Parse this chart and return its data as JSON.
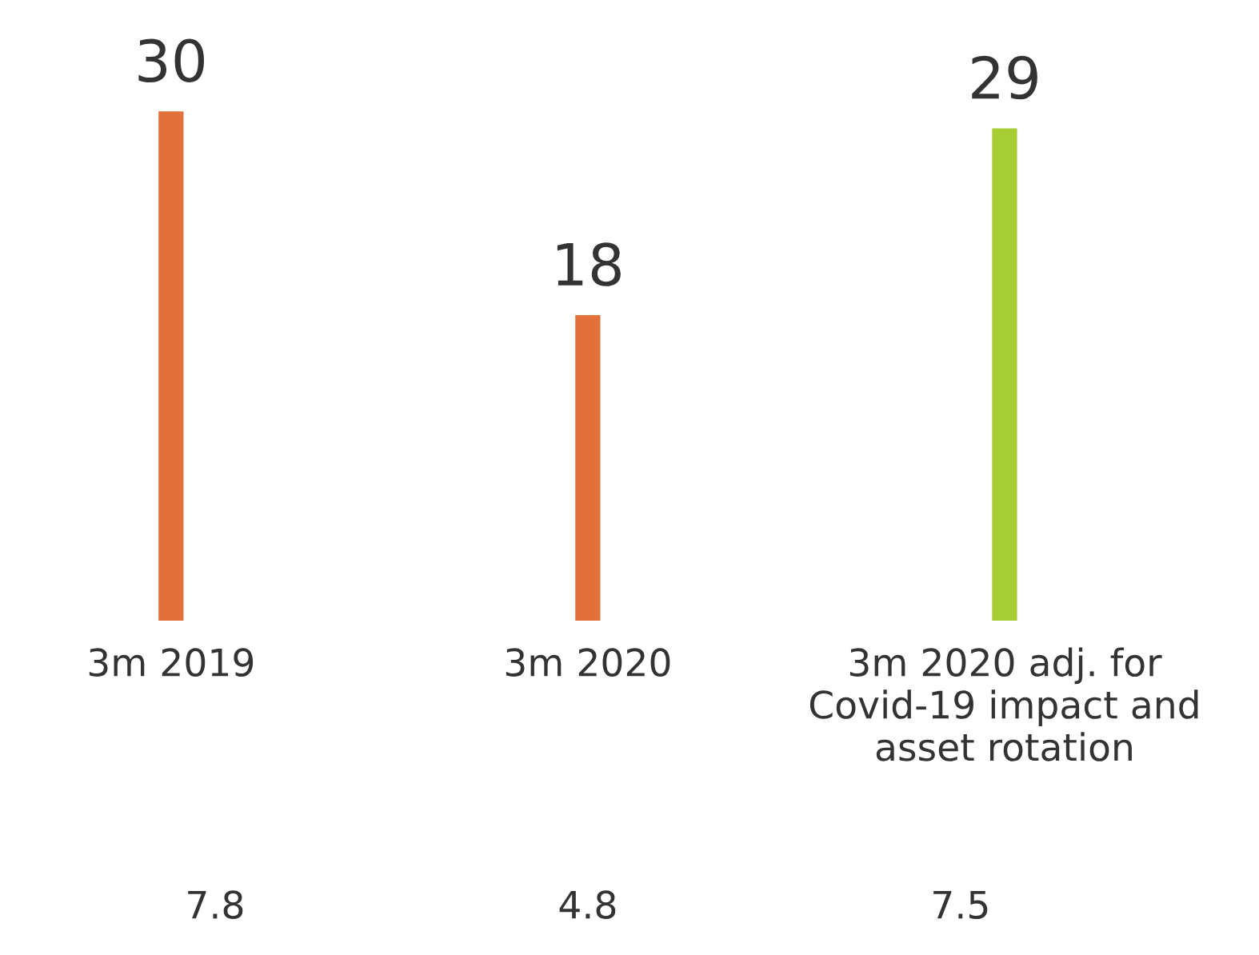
{
  "chart_data": {
    "type": "bar",
    "categories": [
      "3m 2019",
      "3m 2020",
      "3m 2020 adj. for\nCovid-19 impact and\nasset rotation"
    ],
    "values": [
      30,
      18,
      29
    ],
    "colors": [
      "#e2703a",
      "#e2703a",
      "#a6cd34"
    ],
    "data_labels": true,
    "grid": false,
    "legend": false,
    "annotations": [
      "7.8",
      "4.8",
      "7.5"
    ]
  }
}
